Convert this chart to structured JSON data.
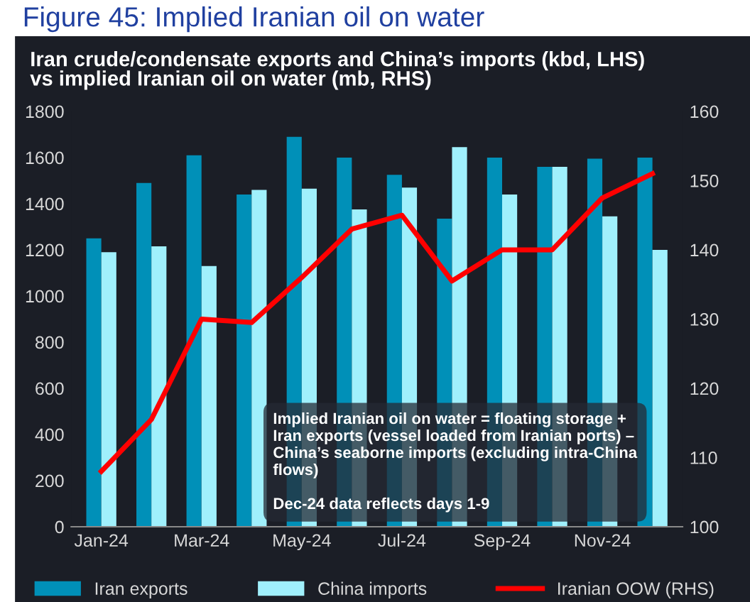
{
  "chart_data": {
    "type": "bar",
    "title": "Figure 45: Implied Iranian oil on water",
    "subtitle": "Iran crude/condensate exports and China’s imports (kbd, LHS)\nvs implied Iranian oil on water (mb, RHS)",
    "categories": [
      "Jan-24",
      null,
      "Mar-24",
      null,
      "May-24",
      null,
      "Jul-24",
      null,
      "Sep-24",
      null,
      "Nov-24",
      null
    ],
    "series": [
      {
        "name": "Iran exports",
        "color": "#0090b8",
        "values": [
          1250,
          1490,
          1610,
          1440,
          1690,
          1600,
          1525,
          1335,
          1600,
          1560,
          1595,
          1600
        ]
      },
      {
        "name": "China imports",
        "color": "#a0f0fc",
        "values": [
          1190,
          1215,
          1130,
          1460,
          1465,
          1375,
          1470,
          1645,
          1440,
          1560,
          1345,
          1200
        ]
      },
      {
        "name": "Iranian OOW (RHS)",
        "type": "line",
        "axis": "y2",
        "color": "#ff0000",
        "values": [
          108,
          115.5,
          130,
          129.5,
          136,
          143,
          145,
          135.5,
          140,
          140,
          147.5,
          151
        ]
      }
    ],
    "ylim": [
      0,
      1800
    ],
    "yticks": [
      0,
      200,
      400,
      600,
      800,
      1000,
      1200,
      1400,
      1600,
      1800
    ],
    "y2lim": [
      100,
      160
    ],
    "y2ticks": [
      100,
      110,
      120,
      130,
      140,
      150,
      160
    ],
    "annotations": [
      "Implied Iranian oil on water = floating storage +\nIran exports (vessel loaded from Iranian ports) –\nChina’s seaborne imports (excluding intra-China\nflows)\n\nDec-24 data reflects days 1-9"
    ],
    "legend": "bottom",
    "grid": false,
    "marker": "none",
    "line_style": "solid"
  }
}
